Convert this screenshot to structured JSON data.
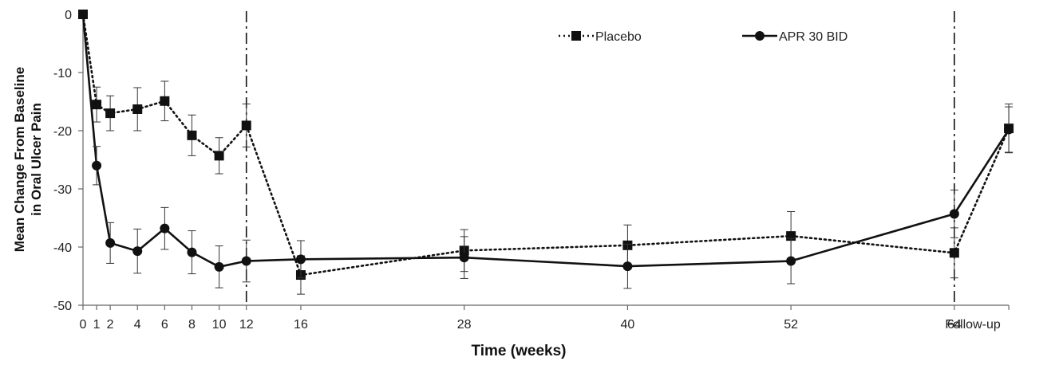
{
  "chart_data": {
    "type": "line",
    "xlabel": "Time (weeks)",
    "ylabel_line1": "Mean Change From Baseline",
    "ylabel_line2": "in Oral Ulcer Pain",
    "ylim": [
      -50,
      0
    ],
    "yticks": [
      0,
      -10,
      -20,
      -30,
      -40,
      -50
    ],
    "xticks": [
      {
        "label": "0",
        "x": 0
      },
      {
        "label": "1",
        "x": 1
      },
      {
        "label": "2",
        "x": 2
      },
      {
        "label": "4",
        "x": 4
      },
      {
        "label": "6",
        "x": 6
      },
      {
        "label": "8",
        "x": 8
      },
      {
        "label": "10",
        "x": 10
      },
      {
        "label": "12",
        "x": 12
      },
      {
        "label": "16",
        "x": 16
      },
      {
        "label": "28",
        "x": 28
      },
      {
        "label": "40",
        "x": 40
      },
      {
        "label": "52",
        "x": 52
      },
      {
        "label": "64",
        "x": 64
      },
      {
        "label": "Follow-up",
        "x": 68
      }
    ],
    "vlines_at": [
      12,
      64
    ],
    "grid": false,
    "legend_placement": "top-right",
    "series": [
      {
        "name": "Placebo",
        "style": "dotted",
        "marker": "square",
        "color": "#111111",
        "points": [
          {
            "x": 0,
            "y": 0,
            "err": 0
          },
          {
            "x": 1,
            "y": -15.5,
            "err": 3
          },
          {
            "x": 2,
            "y": -17,
            "err": 3
          },
          {
            "x": 4,
            "y": -16.3,
            "err": 3.7
          },
          {
            "x": 6,
            "y": -14.9,
            "err": 3.4
          },
          {
            "x": 8,
            "y": -20.8,
            "err": 3.5
          },
          {
            "x": 10,
            "y": -24.3,
            "err": 3.1
          },
          {
            "x": 12,
            "y": -19.1,
            "err": 3.7
          },
          {
            "x": 16,
            "y": -44.8,
            "err": 3.3
          },
          {
            "x": 28,
            "y": -40.6,
            "err": 3.6
          },
          {
            "x": 40,
            "y": -39.7,
            "err": 3.5
          },
          {
            "x": 52,
            "y": -38.1,
            "err": 4.2
          },
          {
            "x": 64,
            "y": -41,
            "err": 4.3
          },
          {
            "x": 68,
            "y": -19.6,
            "err": 4.2
          }
        ]
      },
      {
        "name": "APR 30 BID",
        "style": "solid",
        "marker": "circle",
        "color": "#111111",
        "points": [
          {
            "x": 0,
            "y": 0,
            "err": 0
          },
          {
            "x": 1,
            "y": -26,
            "err": 3.3
          },
          {
            "x": 2,
            "y": -39.3,
            "err": 3.5
          },
          {
            "x": 4,
            "y": -40.7,
            "err": 3.8
          },
          {
            "x": 6,
            "y": -36.8,
            "err": 3.6
          },
          {
            "x": 8,
            "y": -40.9,
            "err": 3.7
          },
          {
            "x": 10,
            "y": -43.4,
            "err": 3.6
          },
          {
            "x": 12,
            "y": -42.4,
            "err": 3.6
          },
          {
            "x": 16,
            "y": -42.1,
            "err": 3.2
          },
          {
            "x": 28,
            "y": -41.8,
            "err": 3.6
          },
          {
            "x": 40,
            "y": -43.3,
            "err": 3.8
          },
          {
            "x": 52,
            "y": -42.4,
            "err": 3.9
          },
          {
            "x": 64,
            "y": -34.3,
            "err": 4.1
          },
          {
            "x": 68,
            "y": -19.8,
            "err": 3.9
          }
        ]
      }
    ]
  }
}
